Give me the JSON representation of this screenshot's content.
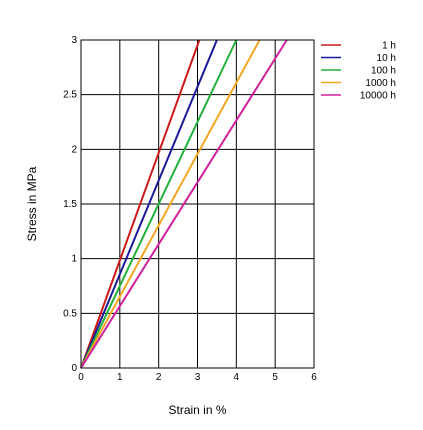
{
  "chart_data": {
    "type": "line",
    "xlabel": "Strain in %",
    "ylabel": "Stress in MPa",
    "xlim": [
      0,
      6
    ],
    "ylim": [
      0,
      3
    ],
    "x_ticks": [
      "0",
      "1",
      "2",
      "3",
      "4",
      "5",
      "6"
    ],
    "y_ticks": [
      "0",
      "0.5",
      "1",
      "1.5",
      "2",
      "2.5",
      "3"
    ],
    "grid": true,
    "legend_position": "top-right",
    "series": [
      {
        "name": "1 h",
        "color": "#cc1a1a",
        "points": [
          [
            0,
            0
          ],
          [
            3.05,
            3
          ]
        ]
      },
      {
        "name": "10 h",
        "color": "#1a1a99",
        "points": [
          [
            0,
            0
          ],
          [
            3.5,
            3
          ]
        ]
      },
      {
        "name": "100 h",
        "color": "#22b03a",
        "points": [
          [
            0,
            0
          ],
          [
            4.0,
            3
          ]
        ]
      },
      {
        "name": "1000 h",
        "color": "#f5a623",
        "points": [
          [
            0,
            0
          ],
          [
            4.6,
            3
          ]
        ]
      },
      {
        "name": "10000 h",
        "color": "#d1209e",
        "points": [
          [
            0,
            0
          ],
          [
            5.3,
            3
          ]
        ]
      }
    ]
  }
}
